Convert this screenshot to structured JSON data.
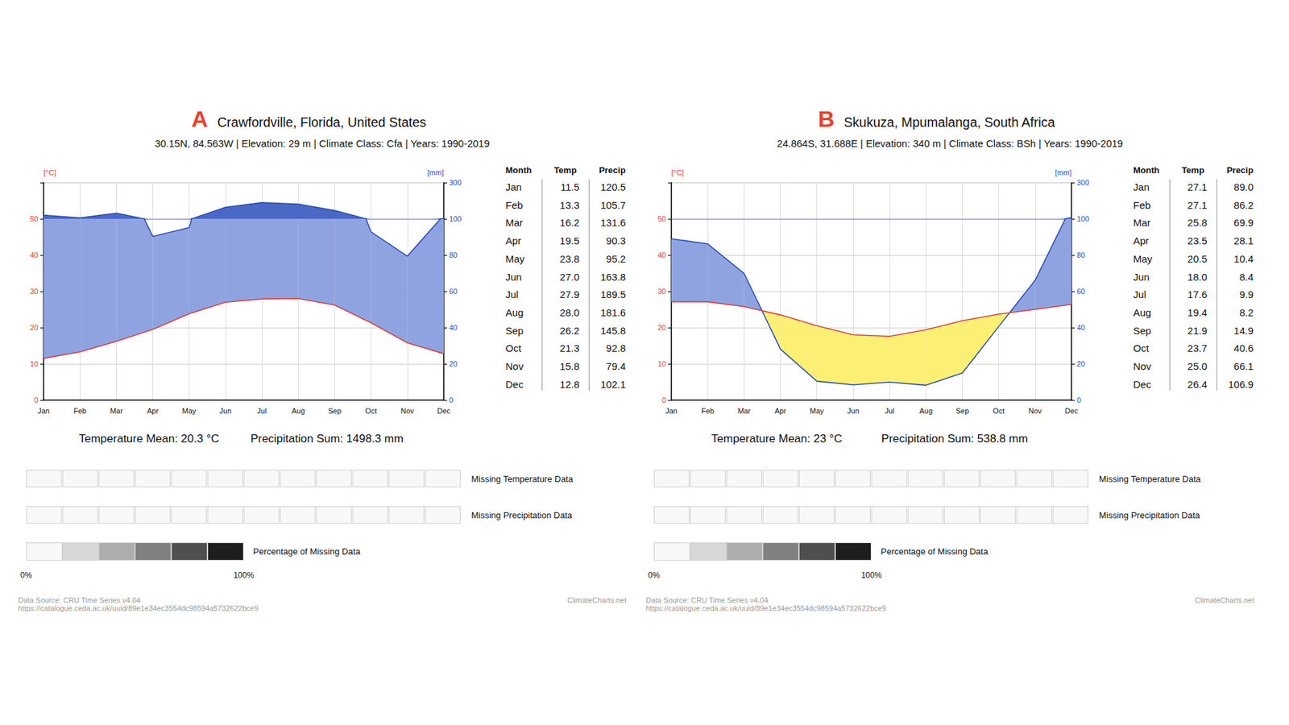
{
  "chart_data": [
    {
      "type": "line",
      "letter": "A",
      "title": "Crawfordville, Florida, United States",
      "subtitle": "30.15N, 84.563W | Elevation: 29 m | Climate Class: Cfa | Years: 1990-2019",
      "categories": [
        "Jan",
        "Feb",
        "Mar",
        "Apr",
        "May",
        "Jun",
        "Jul",
        "Aug",
        "Sep",
        "Oct",
        "Nov",
        "Dec"
      ],
      "y_label": "[°C]",
      "y2_label": "[mm]",
      "ylim": [
        0,
        60
      ],
      "yticks": [
        0,
        10,
        20,
        30,
        40,
        50
      ],
      "y2lim": [
        0,
        300
      ],
      "y2ticks": [
        0,
        20,
        40,
        60,
        80,
        100,
        300
      ],
      "y2_break": {
        "y2": 100,
        "y": 50
      },
      "grid": true,
      "series": [
        {
          "name": "Temp",
          "color": "#d8403a",
          "values": [
            11.5,
            13.3,
            16.2,
            19.5,
            23.8,
            27.0,
            27.9,
            28.0,
            26.2,
            21.3,
            15.8,
            12.8
          ]
        },
        {
          "name": "Precip",
          "color": "#2b4db3",
          "axis": "y2",
          "values": [
            120.5,
            105.7,
            131.6,
            90.3,
            95.2,
            163.8,
            189.5,
            181.6,
            145.8,
            92.8,
            79.4,
            102.1
          ]
        }
      ],
      "table_header": [
        "Month",
        "Temp",
        "Precip"
      ],
      "temperature_mean": "Temperature Mean: 20.3 °C",
      "precipitation_sum": "Precipitation Sum: 1498.3 mm",
      "missing_temperature": [
        0,
        0,
        0,
        0,
        0,
        0,
        0,
        0,
        0,
        0,
        0,
        0
      ],
      "missing_temperature_label": "Missing Temperature Data",
      "missing_precipitation": [
        0,
        0,
        0,
        0,
        0,
        0,
        0,
        0,
        0,
        0,
        0,
        0
      ],
      "missing_precipitation_label": "Missing Precipitation Data",
      "missing_scale": {
        "title": "Percentage of Missing Data",
        "range": [
          0,
          100
        ],
        "ticks": [
          {
            "value": 0,
            "label": "0%"
          },
          {
            "value": 100,
            "label": "100%"
          }
        ]
      },
      "source": "Data Source: CRU Time Series v4.04",
      "source_url": "https://catalogue.ceda.ac.uk/uuid/89e1e34ec3554dc98594a5732622bce9",
      "credit": "ClimateCharts.net"
    },
    {
      "type": "line",
      "letter": "B",
      "title": "Skukuza, Mpumalanga, South Africa",
      "subtitle": "24.864S, 31.688E | Elevation: 340 m | Climate Class: BSh | Years: 1990-2019",
      "categories": [
        "Jan",
        "Feb",
        "Mar",
        "Apr",
        "May",
        "Jun",
        "Jul",
        "Aug",
        "Sep",
        "Oct",
        "Nov",
        "Dec"
      ],
      "y_label": "[°C]",
      "y2_label": "[mm]",
      "ylim": [
        0,
        60
      ],
      "yticks": [
        0,
        10,
        20,
        30,
        40,
        50
      ],
      "y2lim": [
        0,
        300
      ],
      "y2ticks": [
        0,
        20,
        40,
        60,
        80,
        100,
        300
      ],
      "y2_break": {
        "y2": 100,
        "y": 50
      },
      "grid": true,
      "series": [
        {
          "name": "Temp",
          "color": "#d8403a",
          "values": [
            27.1,
            27.1,
            25.8,
            23.5,
            20.5,
            18.0,
            17.6,
            19.4,
            21.9,
            23.7,
            25.0,
            26.4
          ]
        },
        {
          "name": "Precip",
          "color": "#2b4db3",
          "axis": "y2",
          "values": [
            89.0,
            86.2,
            69.9,
            28.1,
            10.4,
            8.4,
            9.9,
            8.2,
            14.9,
            40.6,
            66.1,
            106.9
          ]
        }
      ],
      "table_header": [
        "Month",
        "Temp",
        "Precip"
      ],
      "temperature_mean": "Temperature Mean: 23 °C",
      "precipitation_sum": "Precipitation Sum: 538.8 mm",
      "missing_temperature": [
        0,
        0,
        0,
        0,
        0,
        0,
        0,
        0,
        0,
        0,
        0,
        0
      ],
      "missing_temperature_label": "Missing Temperature Data",
      "missing_precipitation": [
        0,
        0,
        0,
        0,
        0,
        0,
        0,
        0,
        0,
        0,
        0,
        0
      ],
      "missing_precipitation_label": "Missing Precipitation Data",
      "missing_scale": {
        "title": "Percentage of Missing Data",
        "range": [
          0,
          100
        ],
        "ticks": [
          {
            "value": 0,
            "label": "0%"
          },
          {
            "value": 100,
            "label": "100%"
          }
        ]
      },
      "source": "Data Source: CRU Time Series v4.04",
      "source_url": "https://catalogue.ceda.ac.uk/uuid/89e1e34ec3554dc98594a5732622bce9",
      "credit": "ClimateCharts.net"
    }
  ]
}
